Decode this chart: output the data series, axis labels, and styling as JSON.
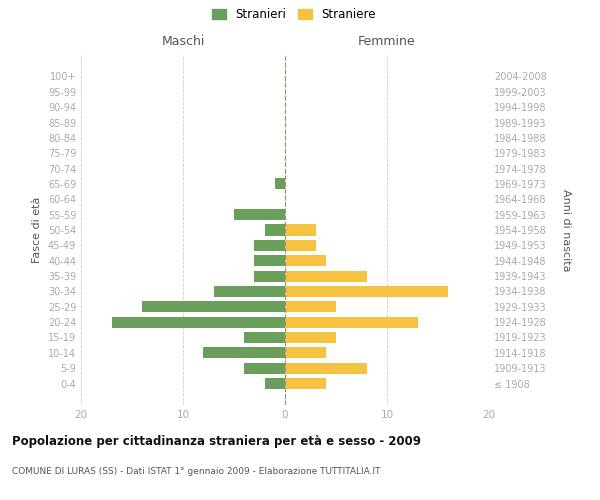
{
  "age_groups": [
    "100+",
    "95-99",
    "90-94",
    "85-89",
    "80-84",
    "75-79",
    "70-74",
    "65-69",
    "60-64",
    "55-59",
    "50-54",
    "45-49",
    "40-44",
    "35-39",
    "30-34",
    "25-29",
    "20-24",
    "15-19",
    "10-14",
    "5-9",
    "0-4"
  ],
  "birth_years": [
    "≤ 1908",
    "1909-1913",
    "1914-1918",
    "1919-1923",
    "1924-1928",
    "1929-1933",
    "1934-1938",
    "1939-1943",
    "1944-1948",
    "1949-1953",
    "1954-1958",
    "1959-1963",
    "1964-1968",
    "1969-1973",
    "1974-1978",
    "1979-1983",
    "1984-1988",
    "1989-1993",
    "1994-1998",
    "1999-2003",
    "2004-2008"
  ],
  "maschi": [
    0,
    0,
    0,
    0,
    0,
    0,
    0,
    1,
    0,
    5,
    2,
    3,
    3,
    3,
    7,
    14,
    17,
    4,
    8,
    4,
    2
  ],
  "femmine": [
    0,
    0,
    0,
    0,
    0,
    0,
    0,
    0,
    0,
    0,
    3,
    3,
    4,
    8,
    16,
    5,
    13,
    5,
    4,
    8,
    4
  ],
  "color_maschi": "#6a9e5b",
  "color_femmine": "#f5c242",
  "title": "Popolazione per cittadinanza straniera per età e sesso - 2009",
  "subtitle": "COMUNE DI LURAS (SS) - Dati ISTAT 1° gennaio 2009 - Elaborazione TUTTITALIA.IT",
  "label_maschi_header": "Maschi",
  "label_femmine_header": "Femmine",
  "ylabel_left": "Fasce di età",
  "ylabel_right": "Anni di nascita",
  "legend_maschi": "Stranieri",
  "legend_femmine": "Straniere",
  "xlim": 20,
  "background_color": "#ffffff",
  "grid_color": "#cccccc",
  "tick_color": "#aaaaaa",
  "header_color": "#555555",
  "title_color": "#111111",
  "subtitle_color": "#555555"
}
